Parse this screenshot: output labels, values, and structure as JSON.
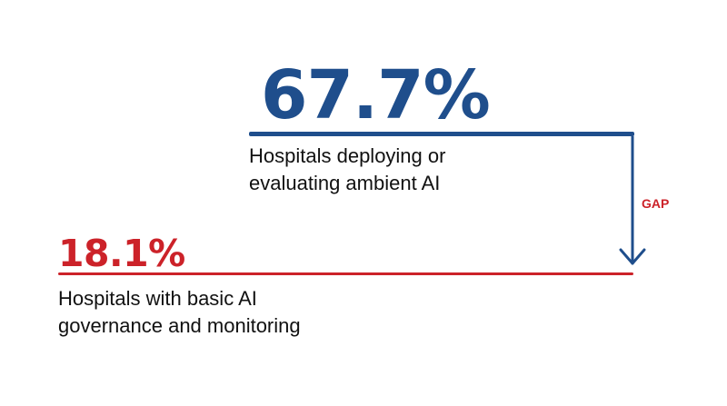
{
  "chart_data": {
    "type": "comparison",
    "stats": [
      {
        "value": "67.7%",
        "number": 67.7,
        "label_lines": [
          "Hospitals deploying or",
          "evaluating ambient AI"
        ],
        "color": "#1f4e8c"
      },
      {
        "value": "18.1%",
        "number": 18.1,
        "label_lines": [
          "Hospitals with basic AI",
          "governance and monitoring"
        ],
        "color": "#cc2229"
      }
    ],
    "gap": {
      "label": "GAP",
      "color": "#cc2229",
      "arrow_color": "#1f4e8c"
    }
  }
}
